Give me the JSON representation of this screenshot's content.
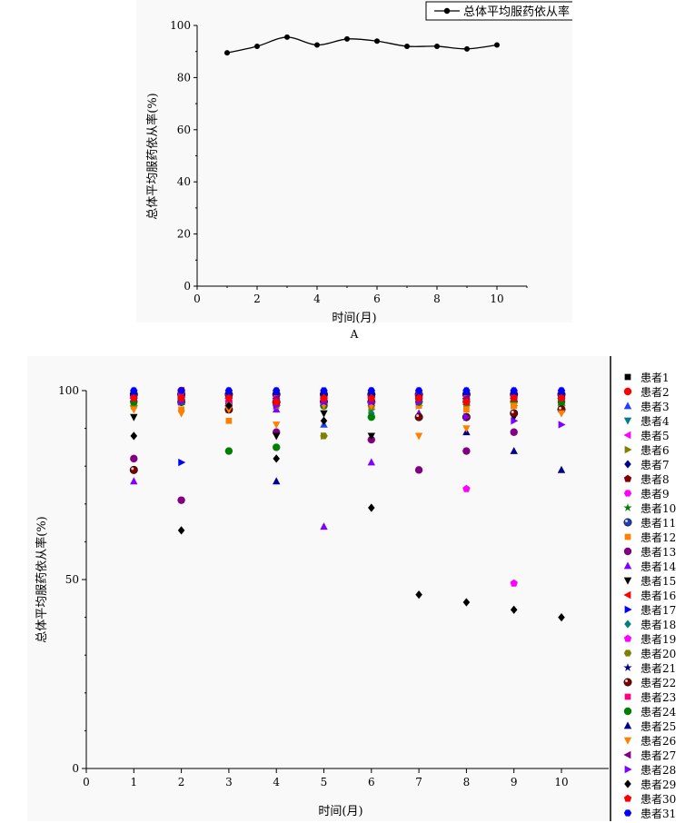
{
  "chart_data": [
    {
      "type": "line",
      "panel_label": "A",
      "xlabel": "时间(月)",
      "ylabel": "总体平均服药依从率(%)",
      "xlim": [
        0,
        11
      ],
      "ylim": [
        0,
        100
      ],
      "xticks": [
        0,
        2,
        4,
        6,
        8,
        10
      ],
      "yticks": [
        0,
        20,
        40,
        60,
        80,
        100
      ],
      "legend": "top-right",
      "series": [
        {
          "name": "总体平均服药依从率",
          "x": [
            1,
            2,
            3,
            4,
            5,
            6,
            7,
            8,
            9,
            10
          ],
          "values": [
            89.5,
            92,
            95.5,
            92.5,
            94.8,
            94,
            92,
            92,
            91,
            92.5
          ]
        }
      ]
    },
    {
      "type": "scatter",
      "xlabel": "时间(月)",
      "ylabel": "总体平均服药依从率(%)",
      "xlim": [
        0,
        11
      ],
      "ylim": [
        0,
        100
      ],
      "xticks": [
        0,
        1,
        2,
        3,
        4,
        5,
        6,
        7,
        8,
        9,
        10
      ],
      "yticks": [
        0,
        50,
        100
      ],
      "legend": "right",
      "series": [
        {
          "name": "患者1",
          "color": "#000000",
          "marker": "square",
          "values": [
            97,
            98,
            97,
            98,
            97,
            96,
            97,
            97,
            96,
            95
          ]
        },
        {
          "name": "患者2",
          "color": "#ff0000",
          "marker": "circle",
          "values": [
            99,
            100,
            99,
            99,
            98,
            99,
            98,
            99,
            99,
            99
          ]
        },
        {
          "name": "患者3",
          "color": "#1f3fff",
          "marker": "triangle-up",
          "values": [
            100,
            99,
            100,
            100,
            91,
            100,
            100,
            100,
            100,
            100
          ]
        },
        {
          "name": "患者4",
          "color": "#008080",
          "marker": "triangle-down",
          "values": [
            98,
            97,
            98,
            97,
            96,
            97,
            98,
            98,
            97,
            98
          ]
        },
        {
          "name": "患者5",
          "color": "#ff00ff",
          "marker": "triangle-left",
          "values": [
            98,
            99,
            98,
            98,
            97,
            98,
            99,
            98,
            98,
            98
          ]
        },
        {
          "name": "患者6",
          "color": "#808000",
          "marker": "triangle-right",
          "values": [
            96,
            97,
            95,
            96,
            88,
            95,
            96,
            96,
            96,
            96
          ]
        },
        {
          "name": "患者7",
          "color": "#00008b",
          "marker": "diamond",
          "values": [
            99,
            98,
            99,
            99,
            98,
            99,
            99,
            98,
            98,
            99
          ]
        },
        {
          "name": "患者8",
          "color": "#800000",
          "marker": "pentagon",
          "values": [
            97,
            98,
            97,
            96,
            97,
            98,
            97,
            97,
            97,
            97
          ]
        },
        {
          "name": "患者9",
          "color": "#ff00ff",
          "marker": "hexagon",
          "values": [
            98,
            97,
            98,
            98,
            97,
            97,
            98,
            98,
            98,
            98
          ]
        },
        {
          "name": "患者10",
          "color": "#008000",
          "marker": "star",
          "values": [
            98,
            98,
            98,
            97,
            97,
            98,
            98,
            97,
            97,
            98
          ]
        },
        {
          "name": "患者11",
          "color": "#1f3fbf",
          "marker": "sphere",
          "values": [
            99,
            99,
            99,
            99,
            99,
            99,
            99,
            99,
            99,
            99
          ]
        },
        {
          "name": "患者12",
          "color": "#ff8000",
          "marker": "square",
          "values": [
            96,
            95,
            92,
            96,
            97,
            96,
            96,
            95,
            96,
            96
          ]
        },
        {
          "name": "患者13",
          "color": "#800080",
          "marker": "circle",
          "values": [
            82,
            71,
            96,
            89,
            96,
            87,
            79,
            84,
            89,
            98
          ]
        },
        {
          "name": "患者14",
          "color": "#8000ff",
          "marker": "triangle-up",
          "values": [
            76,
            97,
            97,
            95,
            64,
            81,
            94,
            97,
            98,
            97
          ]
        },
        {
          "name": "患者15",
          "color": "#000000",
          "marker": "triangle-down",
          "values": [
            93,
            97,
            96,
            88,
            94,
            88,
            97,
            97,
            93,
            96
          ]
        },
        {
          "name": "患者16",
          "color": "#ff0000",
          "marker": "triangle-left",
          "values": [
            98,
            100,
            99,
            98,
            98,
            99,
            99,
            98,
            99,
            99
          ]
        },
        {
          "name": "患者17",
          "color": "#0000ff",
          "marker": "triangle-right",
          "values": [
            99,
            81,
            99,
            99,
            99,
            99,
            99,
            99,
            99,
            99
          ]
        },
        {
          "name": "患者18",
          "color": "#008080",
          "marker": "diamond",
          "values": [
            98,
            97,
            98,
            98,
            97,
            94,
            98,
            97,
            98,
            98
          ]
        },
        {
          "name": "患者19",
          "color": "#ff00ff",
          "marker": "pentagon",
          "values": [
            97,
            98,
            97,
            97,
            96,
            97,
            98,
            74,
            49,
            97
          ]
        },
        {
          "name": "患者20",
          "color": "#808000",
          "marker": "hexagon",
          "values": [
            96,
            97,
            96,
            96,
            88,
            96,
            97,
            97,
            97,
            96
          ]
        },
        {
          "name": "患者21",
          "color": "#00008b",
          "marker": "star",
          "values": [
            99,
            99,
            99,
            99,
            99,
            99,
            99,
            99,
            99,
            99
          ]
        },
        {
          "name": "患者22",
          "color": "#800000",
          "marker": "sphere",
          "values": [
            79,
            97,
            95,
            97,
            97,
            97,
            93,
            93,
            94,
            95
          ]
        },
        {
          "name": "患者23",
          "color": "#ff0080",
          "marker": "square",
          "values": [
            98,
            99,
            98,
            98,
            98,
            98,
            99,
            98,
            98,
            98
          ]
        },
        {
          "name": "患者24",
          "color": "#008000",
          "marker": "circle",
          "values": [
            97,
            97,
            84,
            85,
            96,
            93,
            97,
            97,
            97,
            97
          ]
        },
        {
          "name": "患者25",
          "color": "#00008b",
          "marker": "triangle-up",
          "values": [
            99,
            98,
            99,
            76,
            99,
            99,
            99,
            89,
            84,
            79
          ]
        },
        {
          "name": "患者26",
          "color": "#ff8000",
          "marker": "triangle-down",
          "values": [
            95,
            94,
            95,
            91,
            96,
            96,
            88,
            90,
            96,
            94
          ]
        },
        {
          "name": "患者27",
          "color": "#800080",
          "marker": "triangle-left",
          "values": [
            98,
            98,
            98,
            98,
            97,
            97,
            98,
            98,
            98,
            98
          ]
        },
        {
          "name": "患者28",
          "color": "#8000ff",
          "marker": "triangle-right",
          "values": [
            98,
            97,
            98,
            96,
            97,
            97,
            97,
            93,
            92,
            91
          ]
        },
        {
          "name": "患者29",
          "color": "#000000",
          "marker": "diamond",
          "values": [
            88,
            63,
            96,
            82,
            92,
            69,
            46,
            44,
            42,
            40
          ]
        },
        {
          "name": "患者30",
          "color": "#ff0000",
          "marker": "pentagon",
          "values": [
            98,
            98,
            98,
            97,
            98,
            98,
            98,
            97,
            98,
            98
          ]
        },
        {
          "name": "患者31",
          "color": "#0000ff",
          "marker": "hexagon",
          "values": [
            100,
            100,
            100,
            100,
            100,
            100,
            100,
            100,
            100,
            100
          ]
        }
      ]
    }
  ]
}
